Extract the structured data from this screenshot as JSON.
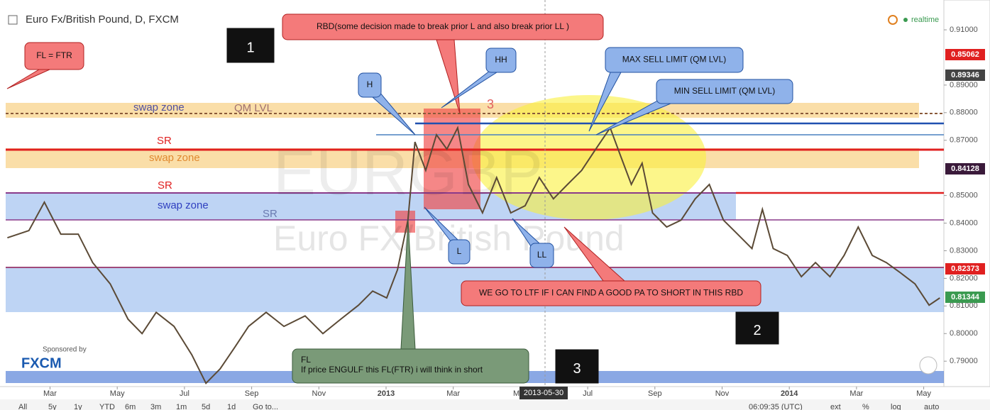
{
  "header": {
    "title": "Euro Fx/British Pound, D, FXCM",
    "status": "realtime",
    "sponsor": "Sponsored by",
    "broker": "FXCM"
  },
  "watermark": [
    "EURGBP",
    "Euro FX/British Pound"
  ],
  "annotations": [
    "FL = FTR",
    "1",
    "RBD(some decision made to break prior L and also break prior LL )",
    "H",
    "HH",
    "MAX SELL LIMIT (QM LVL)",
    "MIN SELL LIMIT (QM LVL)",
    "L",
    "LL",
    "WE GO TO LTF IF I CAN FIND A GOOD PA TO SHORT IN THIS RBD",
    "2",
    "3",
    "3"
  ],
  "fl_note": [
    "FL",
    "If price ENGULF this FL(FTR) i will think in short"
  ],
  "zone_labels": [
    "swap zone",
    "QM LVL",
    "SR",
    "swap zone",
    "SR",
    "swap zone",
    "SR"
  ],
  "price_badges": [
    0.85062,
    0.89346,
    0.84128,
    0.82373,
    0.81344
  ],
  "crosshair_date": "2013-05-30",
  "toolbar": [
    "All",
    "5y",
    "1y",
    "YTD",
    "6m",
    "3m",
    "1m",
    "5d",
    "1d",
    "Go to..."
  ],
  "toolbar_right": [
    "06:09:35 (UTC)",
    "ext",
    "%",
    "log",
    "auto"
  ],
  "chart_data": {
    "type": "line",
    "color": "#5b4a36",
    "x": [
      -1.27,
      -0.63,
      -0.17,
      0.32,
      0.84,
      1.27,
      1.79,
      2.32,
      2.74,
      3.16,
      3.69,
      4.22,
      4.64,
      5.06,
      5.49,
      5.91,
      6.43,
      6.96,
      7.59,
      8.12,
      8.65,
      9.18,
      9.6,
      10.02,
      10.34,
      10.65,
      10.86,
      11.18,
      11.5,
      11.81,
      12.13,
      12.45,
      12.87,
      13.29,
      13.71,
      14.14,
      14.56,
      14.98,
      15.4,
      15.82,
      16.24,
      16.67,
      16.98,
      17.3,
      17.62,
      17.93,
      18.35,
      18.78,
      19.2,
      19.62,
      20.04,
      20.46,
      20.89,
      21.2,
      21.52,
      21.94,
      22.36,
      22.78,
      23.21,
      23.63,
      24.05,
      24.47,
      24.89,
      25.32,
      25.74,
      26.16,
      26.48
    ],
    "values": [
      0.8347,
      0.8373,
      0.8476,
      0.836,
      0.836,
      0.8257,
      0.818,
      0.8052,
      0.8,
      0.8077,
      0.8026,
      0.7923,
      0.782,
      0.7872,
      0.7949,
      0.8026,
      0.8077,
      0.8026,
      0.8064,
      0.8,
      0.8052,
      0.8103,
      0.8154,
      0.8129,
      0.8231,
      0.8411,
      0.8694,
      0.8591,
      0.872,
      0.8668,
      0.8745,
      0.854,
      0.8437,
      0.8565,
      0.8437,
      0.8463,
      0.8565,
      0.8488,
      0.854,
      0.8591,
      0.8668,
      0.8745,
      0.8643,
      0.854,
      0.8617,
      0.8437,
      0.8386,
      0.8411,
      0.8488,
      0.854,
      0.8411,
      0.836,
      0.8308,
      0.845,
      0.8308,
      0.8283,
      0.8206,
      0.8257,
      0.8206,
      0.8283,
      0.8386,
      0.8283,
      0.8257,
      0.8219,
      0.818,
      0.8103,
      0.8129
    ],
    "xlim": [
      -1.32,
      26.6
    ],
    "xticks": [
      {
        "value": 0,
        "label": "Mar"
      },
      {
        "value": 2,
        "label": "May"
      },
      {
        "value": 4,
        "label": "Jul"
      },
      {
        "value": 6,
        "label": "Sep"
      },
      {
        "value": 8,
        "label": "Nov"
      },
      {
        "value": 10,
        "label": "2013"
      },
      {
        "value": 12,
        "label": "Mar"
      },
      {
        "value": 14,
        "label": "May"
      },
      {
        "value": 16,
        "label": "Jul"
      },
      {
        "value": 18,
        "label": "Sep"
      },
      {
        "value": 20,
        "label": "Nov"
      },
      {
        "value": 22,
        "label": "2014"
      },
      {
        "value": 24,
        "label": "Mar"
      },
      {
        "value": 26,
        "label": "May"
      }
    ],
    "ylim": [
      0.7808,
      0.9208
    ],
    "yticks": [
      {
        "value": 0.79,
        "label": "0.79000"
      },
      {
        "value": 0.8,
        "label": "0.80000"
      },
      {
        "value": 0.81,
        "label": "0.81000"
      },
      {
        "value": 0.82,
        "label": "0.82000"
      },
      {
        "value": 0.83,
        "label": "0.83000"
      },
      {
        "value": 0.84,
        "label": "0.84000"
      },
      {
        "value": 0.85,
        "label": "0.85000"
      },
      {
        "value": 0.87,
        "label": "0.87000"
      },
      {
        "value": 0.88,
        "label": "0.88000"
      },
      {
        "value": 0.89,
        "label": "0.89000"
      },
      {
        "value": 0.91,
        "label": "0.91000"
      }
    ]
  }
}
